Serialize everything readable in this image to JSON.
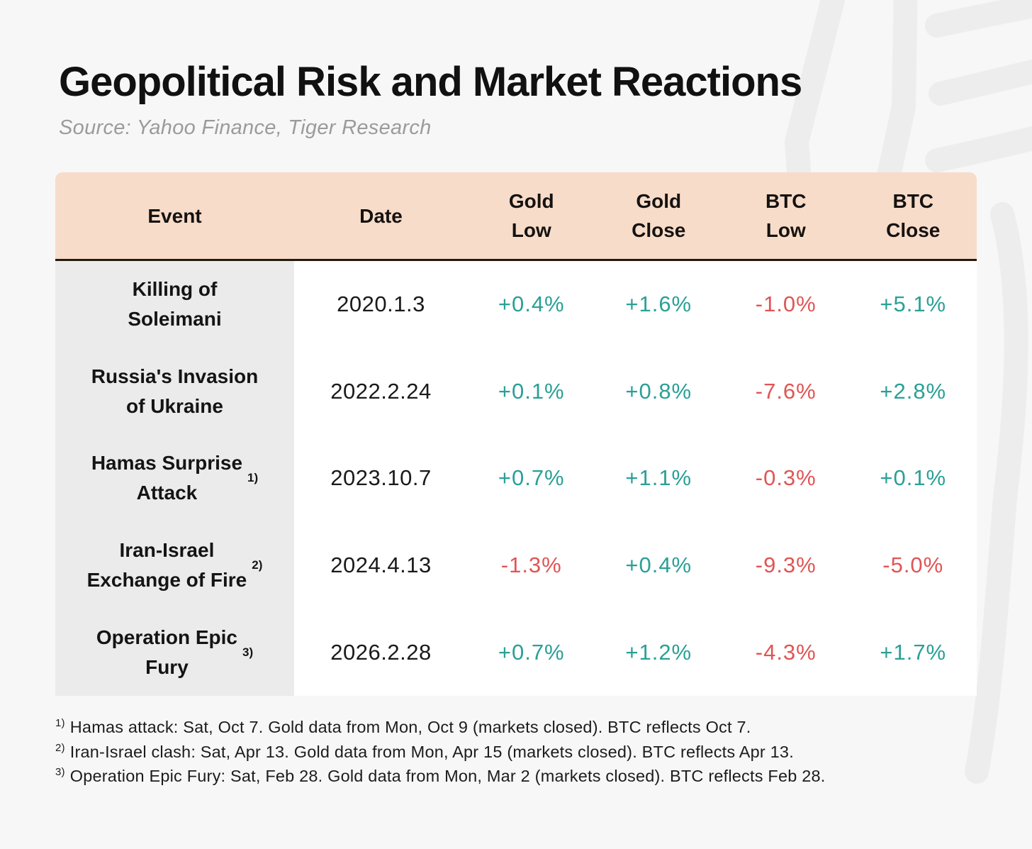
{
  "page": {
    "title": "Geopolitical Risk and Market Reactions",
    "source_line": "Source: Yahoo Finance, Tiger Research"
  },
  "colors": {
    "page_bg": "#f7f7f7",
    "header_bg": "#f7dcc9",
    "event_col_bg": "#ebebeb",
    "body_bg": "#ffffff",
    "header_divider": "#241a12",
    "title": "#111111",
    "subtitle": "#9b9b9b",
    "footnote": "#1c1c1c",
    "positive": "#2aa096",
    "negative": "#e05555",
    "watermark": "#ededed"
  },
  "chart_data": {
    "type": "table",
    "title": "Geopolitical Risk and Market Reactions",
    "source": "Source: Yahoo Finance, Tiger Research",
    "columns": [
      "Event",
      "Date",
      "Gold\nLow",
      "Gold\nClose",
      "BTC\nLow",
      "BTC\nClose"
    ],
    "rows": [
      {
        "event": "Killing of\nSoleimani",
        "marker": "",
        "date": "2020.1.3",
        "values": [
          "+0.4%",
          "+1.6%",
          "-1.0%",
          "+5.1%"
        ]
      },
      {
        "event": "Russia's Invasion\nof Ukraine",
        "marker": "",
        "date": "2022.2.24",
        "values": [
          "+0.1%",
          "+0.8%",
          "-7.6%",
          "+2.8%"
        ]
      },
      {
        "event": "Hamas Surprise\nAttack",
        "marker": "1)",
        "date": "2023.10.7",
        "values": [
          "+0.7%",
          "+1.1%",
          "-0.3%",
          "+0.1%"
        ]
      },
      {
        "event": "Iran-Israel\nExchange of Fire",
        "marker": "2)",
        "date": "2024.4.13",
        "values": [
          "-1.3%",
          "+0.4%",
          "-9.3%",
          "-5.0%"
        ]
      },
      {
        "event": "Operation Epic\nFury",
        "marker": "3)",
        "date": "2026.2.28",
        "values": [
          "+0.7%",
          "+1.2%",
          "-4.3%",
          "+1.7%"
        ]
      }
    ],
    "footnotes": [
      {
        "marker": "1)",
        "text": "Hamas attack: Sat, Oct 7. Gold data from Mon, Oct 9 (markets closed). BTC reflects Oct 7."
      },
      {
        "marker": "2)",
        "text": "Iran-Israel clash: Sat, Apr 13. Gold data from Mon, Apr 15 (markets closed). BTC reflects Apr 13."
      },
      {
        "marker": "3)",
        "text": "Operation Epic Fury: Sat, Feb 28. Gold data from Mon, Mar 2 (markets closed). BTC reflects Feb 28."
      }
    ]
  }
}
